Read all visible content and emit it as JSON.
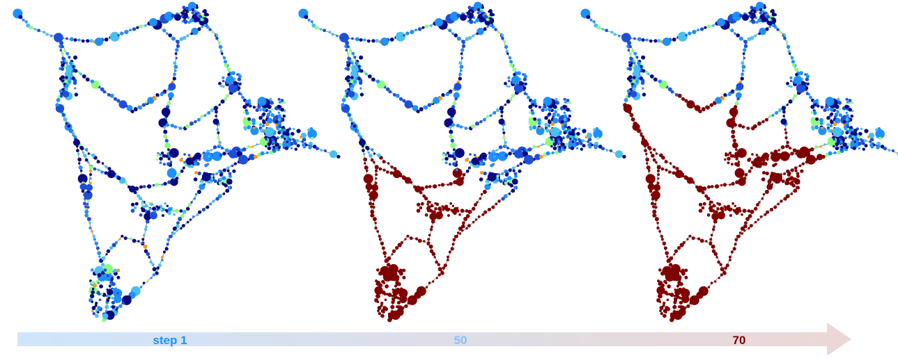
{
  "figure": {
    "panels": [
      {
        "name": "step-1",
        "infection_level": 0.0
      },
      {
        "name": "step-50",
        "infection_level": 0.45
      },
      {
        "name": "step-70",
        "infection_level": 0.62
      }
    ],
    "timeline": {
      "labels": [
        {
          "text": "step 1",
          "color": "#1e90ff"
        },
        {
          "text": "50",
          "color": "#87c1ff"
        },
        {
          "text": "70",
          "color": "#7f0000"
        }
      ],
      "gradient_start": "#cfe5fb",
      "gradient_end": "#ecd7d5"
    },
    "colors": {
      "edge": "#6e6e6e",
      "navy": "#0a0a80",
      "blue": "#1f4fd6",
      "azure": "#1e90ff",
      "cyan": "#49c0f0",
      "green": "#8cff7a",
      "orange": "#ff9900",
      "darkred": "#7f0000"
    }
  }
}
